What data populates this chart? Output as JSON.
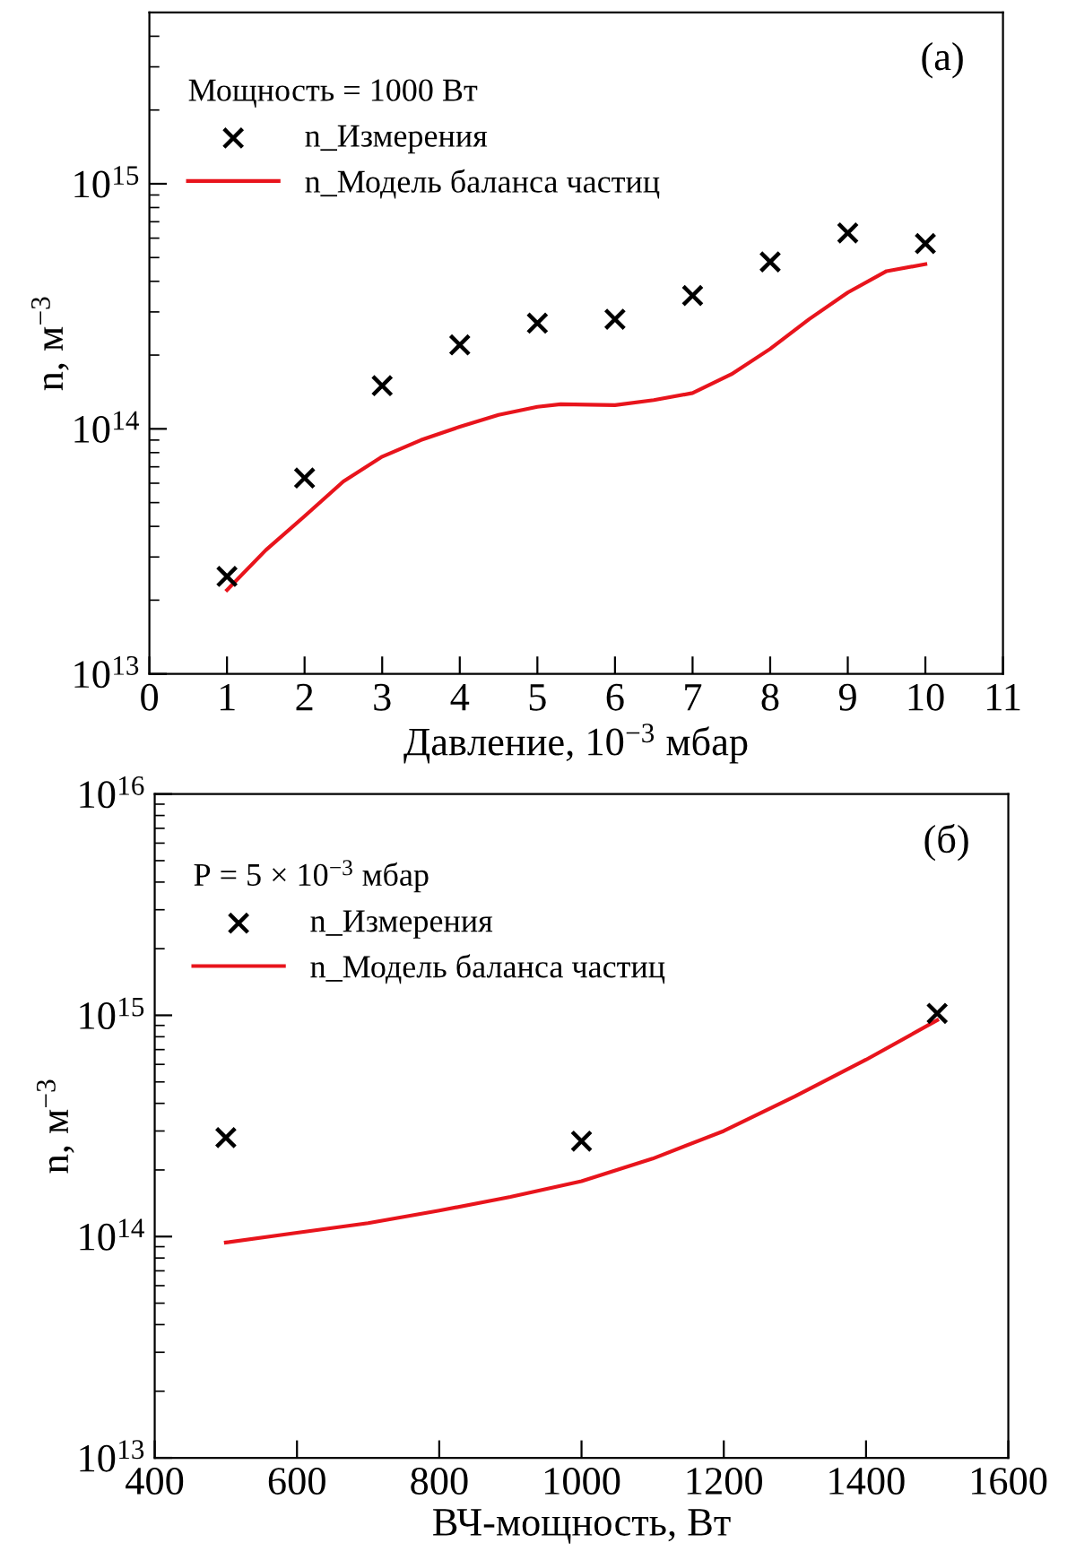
{
  "chart_data": [
    {
      "type": "scatter",
      "xlabel": "Давление, 10$^{−3}$ мбар",
      "ylabel": "n, м$^{−3}$",
      "legend_title": "Мощность = 1000 Вт",
      "annotations": [
        "(a)"
      ],
      "log": "y",
      "legend": "top left",
      "grid": false,
      "xlim": [
        0,
        11
      ],
      "xticks": [
        0,
        1,
        2,
        3,
        4,
        5,
        6,
        7,
        8,
        9,
        10,
        11
      ],
      "ylim": [
        10000000000000.0,
        5000000000000000.0
      ],
      "yticks": [
        {
          "value": 10000000000000.0,
          "label": "10$^{13}$"
        },
        {
          "value": 100000000000000.0,
          "label": "10$^{14}$"
        },
        {
          "value": 1000000000000000.0,
          "label": "10$^{15}$"
        }
      ],
      "series": [
        {
          "name": "n_Измерения",
          "marker": "cross",
          "color": "#000000",
          "x": [
            1,
            2,
            3,
            4,
            5,
            6,
            7,
            8,
            9,
            10
          ],
          "values": [
            25000000000000.0,
            63000000000000.0,
            150000000000000.0,
            220000000000000.0,
            270000000000000.0,
            280000000000000.0,
            350000000000000.0,
            480000000000000.0,
            630000000000000.0,
            570000000000000.0
          ]
        },
        {
          "name": "n_Модель баланса частиц",
          "type": "line",
          "marker": "none",
          "line_style": "solid",
          "color": "#e8141c",
          "x": [
            1,
            1.5,
            2,
            2.5,
            3,
            3.5,
            4,
            4.5,
            5,
            5.3,
            6,
            6.5,
            7,
            7.5,
            8,
            8.5,
            9,
            9.5,
            10
          ],
          "values": [
            22000000000000.0,
            32000000000000.0,
            44000000000000.0,
            61000000000000.0,
            77000000000000.0,
            90000000000000.0,
            102000000000000.0,
            114000000000000.0,
            123000000000000.0,
            126000000000000.0,
            125000000000000.0,
            131000000000000.0,
            140000000000000.0,
            167000000000000.0,
            212000000000000.0,
            280000000000000.0,
            360000000000000.0,
            440000000000000.0,
            470000000000000.0
          ]
        }
      ]
    },
    {
      "type": "scatter",
      "xlabel": "ВЧ-мощность, Вт",
      "ylabel": "n, м$^{−3}$",
      "legend_title": "P = 5 × 10$^{−3}$ мбар",
      "annotations": [
        "(б)"
      ],
      "log": "y",
      "legend": "top left",
      "grid": false,
      "xlim": [
        400,
        1600
      ],
      "xticks": [
        400,
        600,
        800,
        1000,
        1200,
        1400,
        1600
      ],
      "ylim": [
        10000000000000.0,
        1e+16
      ],
      "yticks": [
        {
          "value": 10000000000000.0,
          "label": "10$^{13}$"
        },
        {
          "value": 100000000000000.0,
          "label": "10$^{14}$"
        },
        {
          "value": 1000000000000000.0,
          "label": "10$^{15}$"
        },
        {
          "value": 1e+16,
          "label": "10$^{16}$"
        }
      ],
      "series": [
        {
          "name": "n_Измерения",
          "marker": "cross",
          "color": "#000000",
          "x": [
            500,
            1000,
            1500
          ],
          "values": [
            280000000000000.0,
            270000000000000.0,
            1020000000000000.0
          ]
        },
        {
          "name": "n_Модель баланса частиц",
          "type": "line",
          "marker": "none",
          "line_style": "solid",
          "color": "#e8141c",
          "x": [
            500,
            600,
            700,
            800,
            900,
            1000,
            1100,
            1200,
            1300,
            1400,
            1500
          ],
          "values": [
            94000000000000.0,
            104000000000000.0,
            115000000000000.0,
            131000000000000.0,
            151000000000000.0,
            178000000000000.0,
            225000000000000.0,
            300000000000000.0,
            430000000000000.0,
            630000000000000.0,
            950000000000000.0
          ]
        }
      ]
    }
  ]
}
